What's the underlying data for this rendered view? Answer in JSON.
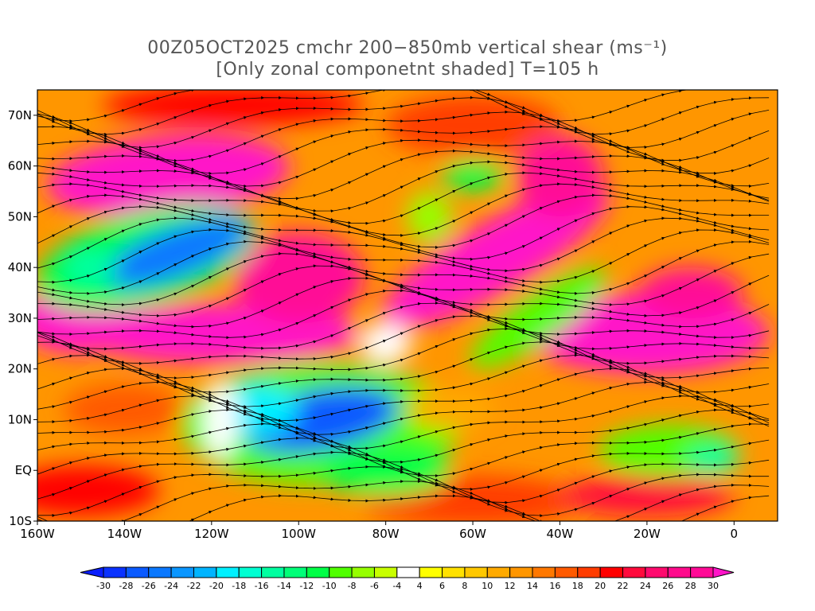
{
  "title": {
    "line1": "00Z05OCT2025 cmchr 200−850mb vertical shear (ms⁻¹)",
    "line2": "[Only zonal componetnt shaded] T=105 h"
  },
  "map": {
    "lon_range": [
      -160,
      10
    ],
    "lat_range": [
      -10,
      75
    ],
    "lon_ticks": [
      {
        "v": -160,
        "label": "160W"
      },
      {
        "v": -140,
        "label": "140W"
      },
      {
        "v": -120,
        "label": "120W"
      },
      {
        "v": -100,
        "label": "100W"
      },
      {
        "v": -80,
        "label": "80W"
      },
      {
        "v": -60,
        "label": "60W"
      },
      {
        "v": -40,
        "label": "40W"
      },
      {
        "v": -20,
        "label": "20W"
      },
      {
        "v": 0,
        "label": "0"
      }
    ],
    "lat_ticks": [
      {
        "v": 70,
        "label": "70N"
      },
      {
        "v": 60,
        "label": "60N"
      },
      {
        "v": 50,
        "label": "50N"
      },
      {
        "v": 40,
        "label": "40N"
      },
      {
        "v": 30,
        "label": "30N"
      },
      {
        "v": 20,
        "label": "20N"
      },
      {
        "v": 10,
        "label": "10N"
      },
      {
        "v": 0,
        "label": "EQ"
      },
      {
        "v": -10,
        "label": "10S"
      }
    ]
  },
  "colorbar": {
    "labels": [
      "-30",
      "-28",
      "-26",
      "-24",
      "-22",
      "-20",
      "-18",
      "-16",
      "-14",
      "-12",
      "-10",
      "-8",
      "-6",
      "-4",
      "4",
      "6",
      "8",
      "10",
      "12",
      "14",
      "16",
      "18",
      "20",
      "22",
      "24",
      "26",
      "28",
      "30"
    ],
    "colors": [
      "#0a32ff",
      "#0a5aff",
      "#0a78ff",
      "#0a96ff",
      "#00b4ff",
      "#00f0ff",
      "#00ffd2",
      "#00ffa0",
      "#00ff78",
      "#00ff46",
      "#50ff00",
      "#96ff00",
      "#c8ff00",
      "#ffffff",
      "#ffff00",
      "#ffe100",
      "#ffc800",
      "#ffaa00",
      "#ff9600",
      "#ff7800",
      "#ff5a00",
      "#ff3c00",
      "#ff0000",
      "#ff0a3c",
      "#ff0a6e",
      "#ff0a8c",
      "#ff0a96"
    ],
    "low_color": "#0a1eff",
    "high_color": "#ff14c8"
  }
}
